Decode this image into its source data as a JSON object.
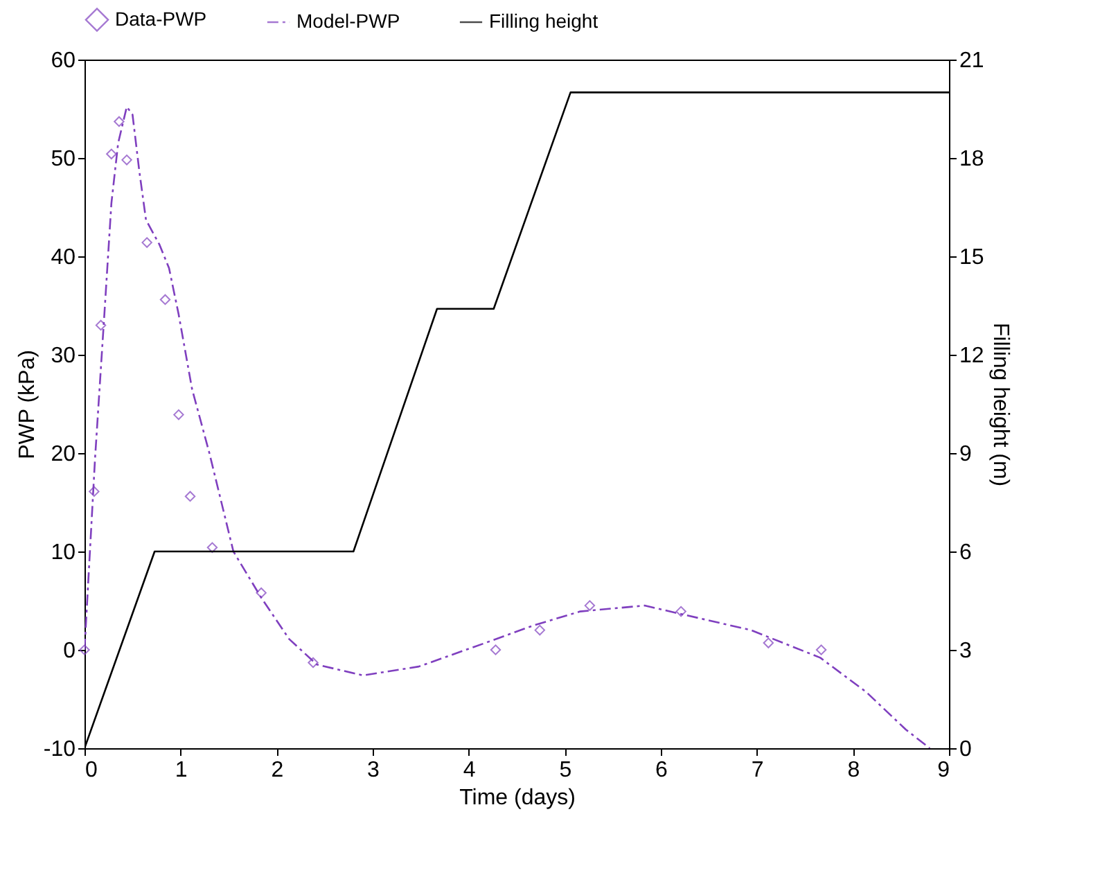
{
  "chart_data": {
    "type": "line",
    "xlabel": "Time (days)",
    "ylabel": "PWP (kPa)",
    "y2label": "Filling height (m)",
    "xlim": [
      0,
      9
    ],
    "xticks": [
      0,
      1,
      2,
      3,
      4,
      5,
      6,
      7,
      8,
      9
    ],
    "ylim": [
      -10,
      60
    ],
    "yticks": [
      -10,
      0,
      10,
      20,
      30,
      40,
      50,
      60
    ],
    "y2lim": [
      0,
      21
    ],
    "y2ticks": [
      0,
      3,
      6,
      9,
      12,
      15,
      18,
      21
    ],
    "legend": "top",
    "grid": false,
    "series": [
      {
        "name": "Data-PWP",
        "type": "scatter",
        "marker": "diamond",
        "color": "#7f3fbf",
        "x": [
          0,
          0.1,
          0.17,
          0.28,
          0.36,
          0.44,
          0.65,
          0.84,
          0.98,
          1.1,
          1.33,
          1.84,
          2.38,
          4.28,
          4.74,
          5.26,
          6.21,
          7.12,
          7.67
        ],
        "values": [
          0,
          16.1,
          33,
          50.4,
          53.7,
          49.8,
          41.4,
          35.6,
          23.9,
          15.6,
          10.4,
          5.8,
          -1.3,
          0,
          2,
          4.5,
          3.9,
          0.7,
          0
        ]
      },
      {
        "name": "Model-PWP",
        "line_style": "dashed",
        "color": "#7f3fbf",
        "x": [
          0,
          0.11,
          0.21,
          0.28,
          0.35,
          0.44,
          0.5,
          0.57,
          0.64,
          0.78,
          0.88,
          0.98,
          1.12,
          1.3,
          1.55,
          1.84,
          2.13,
          2.42,
          2.9,
          3.48,
          4.2,
          4.68,
          5.16,
          5.83,
          6.94,
          7.66,
          8.14,
          8.55,
          8.8
        ],
        "values": [
          0,
          19.5,
          34.6,
          45.4,
          51.5,
          55.2,
          54.4,
          48.7,
          43.7,
          41.2,
          38.8,
          34.1,
          26.5,
          20,
          10,
          5.3,
          1.1,
          -1.5,
          -2.6,
          -1.7,
          0.8,
          2.5,
          3.9,
          4.5,
          2,
          -0.8,
          -4.3,
          -8.1,
          -10
        ]
      },
      {
        "name": "Filling height",
        "line_style": "solid",
        "axis": "y2",
        "color": "#000000",
        "x": [
          0,
          0.73,
          2.8,
          3.67,
          4.26,
          5.06,
          9
        ],
        "values": [
          0,
          6,
          6,
          13.4,
          13.4,
          20,
          20
        ]
      }
    ]
  }
}
